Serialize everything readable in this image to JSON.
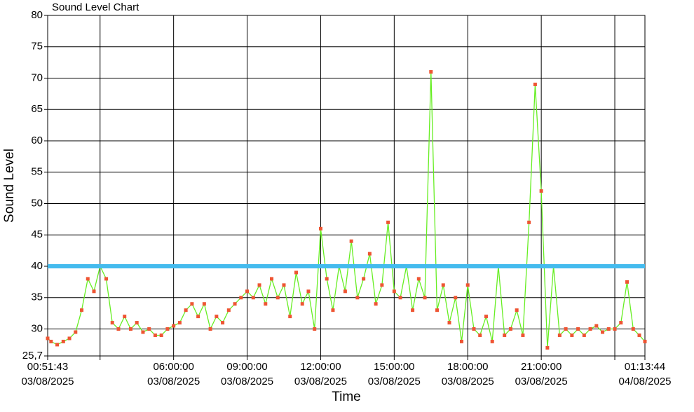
{
  "chart_data": {
    "type": "line",
    "title": "Sound Level Chart",
    "x_label": "Time",
    "y_label": "Sound Level",
    "x": [
      "2025-08-03T00:51:43",
      "2025-08-03T01:00:00",
      "2025-08-03T01:15:00",
      "2025-08-03T01:30:00",
      "2025-08-03T01:45:00",
      "2025-08-03T02:00:00",
      "2025-08-03T02:15:00",
      "2025-08-03T02:30:00",
      "2025-08-03T02:45:00",
      "2025-08-03T03:00:00",
      "2025-08-03T03:15:00",
      "2025-08-03T03:30:00",
      "2025-08-03T03:45:00",
      "2025-08-03T04:00:00",
      "2025-08-03T04:15:00",
      "2025-08-03T04:30:00",
      "2025-08-03T04:45:00",
      "2025-08-03T05:00:00",
      "2025-08-03T05:15:00",
      "2025-08-03T05:30:00",
      "2025-08-03T05:45:00",
      "2025-08-03T06:00:00",
      "2025-08-03T06:15:00",
      "2025-08-03T06:30:00",
      "2025-08-03T06:45:00",
      "2025-08-03T07:00:00",
      "2025-08-03T07:15:00",
      "2025-08-03T07:30:00",
      "2025-08-03T07:45:00",
      "2025-08-03T08:00:00",
      "2025-08-03T08:15:00",
      "2025-08-03T08:30:00",
      "2025-08-03T08:45:00",
      "2025-08-03T09:00:00",
      "2025-08-03T09:15:00",
      "2025-08-03T09:30:00",
      "2025-08-03T09:45:00",
      "2025-08-03T10:00:00",
      "2025-08-03T10:15:00",
      "2025-08-03T10:30:00",
      "2025-08-03T10:45:00",
      "2025-08-03T11:00:00",
      "2025-08-03T11:15:00",
      "2025-08-03T11:30:00",
      "2025-08-03T11:45:00",
      "2025-08-03T12:00:00",
      "2025-08-03T12:15:00",
      "2025-08-03T12:30:00",
      "2025-08-03T12:45:00",
      "2025-08-03T13:00:00",
      "2025-08-03T13:15:00",
      "2025-08-03T13:30:00",
      "2025-08-03T13:45:00",
      "2025-08-03T14:00:00",
      "2025-08-03T14:15:00",
      "2025-08-03T14:30:00",
      "2025-08-03T14:45:00",
      "2025-08-03T15:00:00",
      "2025-08-03T15:15:00",
      "2025-08-03T15:30:00",
      "2025-08-03T15:45:00",
      "2025-08-03T16:00:00",
      "2025-08-03T16:15:00",
      "2025-08-03T16:30:00",
      "2025-08-03T16:45:00",
      "2025-08-03T17:00:00",
      "2025-08-03T17:15:00",
      "2025-08-03T17:30:00",
      "2025-08-03T17:45:00",
      "2025-08-03T18:00:00",
      "2025-08-03T18:15:00",
      "2025-08-03T18:30:00",
      "2025-08-03T18:45:00",
      "2025-08-03T19:00:00",
      "2025-08-03T19:15:00",
      "2025-08-03T19:30:00",
      "2025-08-03T19:45:00",
      "2025-08-03T20:00:00",
      "2025-08-03T20:15:00",
      "2025-08-03T20:30:00",
      "2025-08-03T20:45:00",
      "2025-08-03T21:00:00",
      "2025-08-03T21:15:00",
      "2025-08-03T21:30:00",
      "2025-08-03T21:45:00",
      "2025-08-03T22:00:00",
      "2025-08-03T22:15:00",
      "2025-08-03T22:30:00",
      "2025-08-03T22:45:00",
      "2025-08-03T23:00:00",
      "2025-08-03T23:15:00",
      "2025-08-03T23:30:00",
      "2025-08-03T23:45:00",
      "2025-08-04T00:00:00",
      "2025-08-04T00:15:00",
      "2025-08-04T00:30:00",
      "2025-08-04T00:45:00",
      "2025-08-04T01:00:00",
      "2025-08-04T01:13:44"
    ],
    "values": [
      28.5,
      28,
      27.5,
      28,
      28.5,
      29.5,
      33,
      38,
      36,
      40,
      38,
      31,
      30,
      32,
      30,
      31,
      29.5,
      30,
      29,
      29,
      30,
      30.5,
      31,
      33,
      34,
      32,
      34,
      30,
      32,
      31,
      33,
      34,
      35,
      36,
      35,
      37,
      34,
      38,
      35,
      37,
      32,
      39,
      34,
      36,
      30,
      46,
      38,
      33,
      40,
      36,
      44,
      35,
      38,
      42,
      34,
      37,
      47,
      36,
      35,
      40,
      33,
      38,
      35,
      71,
      33,
      37,
      31,
      35,
      28,
      37,
      30,
      29,
      32,
      28,
      40,
      29,
      30,
      33,
      29,
      47,
      69,
      52,
      27,
      40,
      29,
      30,
      29,
      30,
      29,
      30,
      30.5,
      29.5,
      30,
      30,
      31,
      37.5,
      30,
      29,
      28
    ],
    "color": "#66ee22",
    "marker_color": "#ee5533",
    "threshold": 40,
    "threshold_color": "#44bbee",
    "xlim": [
      "2025-08-03T00:51:43",
      "2025-08-04T01:13:44"
    ],
    "xticks": [
      {
        "value": "2025-08-03T00:51:43",
        "label": [
          "00:51:43",
          "03/08/2025"
        ]
      },
      {
        "value": "2025-08-03T03:00:00",
        "label": null
      },
      {
        "value": "2025-08-03T06:00:00",
        "label": [
          "06:00:00",
          "03/08/2025"
        ]
      },
      {
        "value": "2025-08-03T09:00:00",
        "label": [
          "09:00:00",
          "03/08/2025"
        ]
      },
      {
        "value": "2025-08-03T12:00:00",
        "label": [
          "12:00:00",
          "03/08/2025"
        ]
      },
      {
        "value": "2025-08-03T15:00:00",
        "label": [
          "15:00:00",
          "03/08/2025"
        ]
      },
      {
        "value": "2025-08-03T18:00:00",
        "label": [
          "18:00:00",
          "03/08/2025"
        ]
      },
      {
        "value": "2025-08-03T21:00:00",
        "label": [
          "21:00:00",
          "03/08/2025"
        ]
      },
      {
        "value": "2025-08-04T00:00:00",
        "label": null
      },
      {
        "value": "2025-08-04T01:13:44",
        "label": [
          "01:13:44",
          "04/08/2025"
        ]
      }
    ],
    "ylim": [
      25.7,
      80
    ],
    "yticks": [
      {
        "value": 25.7,
        "label": "25,7"
      },
      30,
      35,
      40,
      45,
      50,
      55,
      60,
      65,
      70,
      75,
      80
    ],
    "grid": true
  }
}
